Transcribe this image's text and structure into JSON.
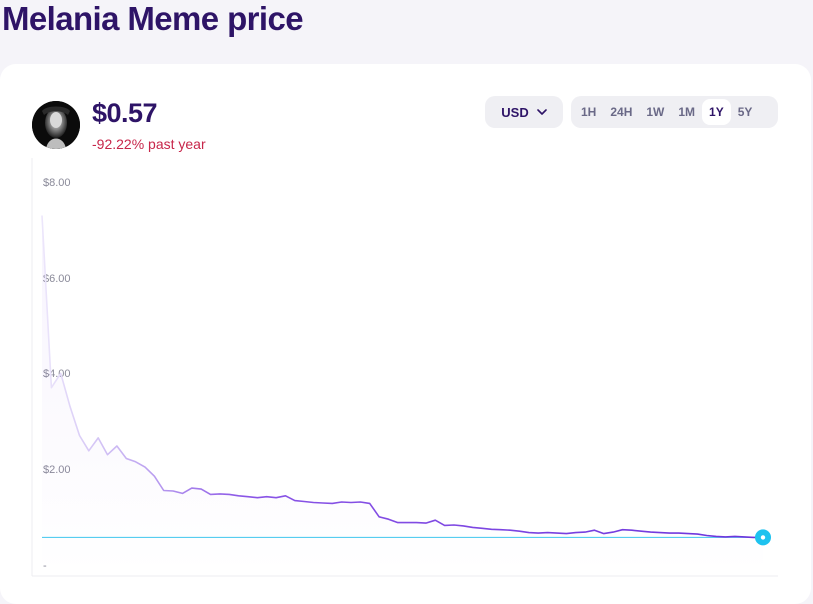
{
  "page": {
    "title": "Melania Meme price"
  },
  "asset": {
    "price": "$0.57",
    "change": "-92.22% past year",
    "change_color": "#c7264a",
    "avatar_icon": "melania-token-logo"
  },
  "controls": {
    "currency": "USD",
    "ranges": [
      "1H",
      "24H",
      "1W",
      "1M",
      "1Y",
      "5Y"
    ],
    "active_range": "1Y"
  },
  "colors": {
    "title": "#2e1467",
    "line": "#7b3fe4",
    "reference_line": "#3fc6ee",
    "endpoint": "#1ec2ef"
  },
  "chart_data": {
    "type": "line",
    "ytick_labels": [
      "$8.00",
      "$6.00",
      "$4.00",
      "$2.00",
      "-"
    ],
    "ylim": [
      0,
      8
    ],
    "reference_value": 0.57,
    "series": [
      {
        "values": [
          7.3,
          3.7,
          4.0,
          3.3,
          2.7,
          2.38,
          2.65,
          2.3,
          2.48,
          2.22,
          2.15,
          2.04,
          1.85,
          1.55,
          1.54,
          1.49,
          1.6,
          1.58,
          1.47,
          1.48,
          1.47,
          1.44,
          1.42,
          1.4,
          1.42,
          1.4,
          1.44,
          1.34,
          1.32,
          1.3,
          1.29,
          1.28,
          1.31,
          1.3,
          1.31,
          1.28,
          1.0,
          0.95,
          0.88,
          0.88,
          0.88,
          0.87,
          0.93,
          0.82,
          0.83,
          0.81,
          0.78,
          0.76,
          0.74,
          0.73,
          0.72,
          0.7,
          0.67,
          0.66,
          0.67,
          0.66,
          0.65,
          0.67,
          0.68,
          0.72,
          0.65,
          0.68,
          0.73,
          0.72,
          0.7,
          0.68,
          0.67,
          0.66,
          0.66,
          0.65,
          0.64,
          0.61,
          0.59,
          0.58,
          0.59,
          0.58,
          0.57,
          0.57
        ]
      }
    ]
  }
}
